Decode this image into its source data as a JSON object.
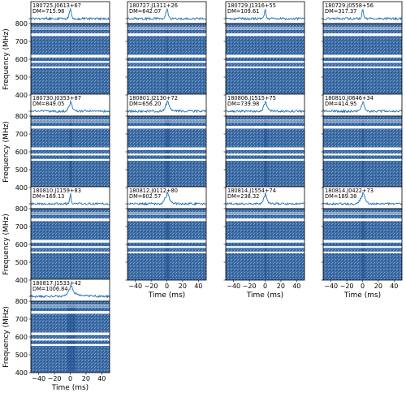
{
  "chart_data": {
    "type": "heatmap",
    "description_kind": "dynamic spectra with pulse profiles",
    "xlabel": "Time (ms)",
    "ylabel": "Frequency (MHz)",
    "xlim": [
      -50,
      50
    ],
    "ylim": [
      400,
      800
    ],
    "xticks": [
      -40,
      -20,
      0,
      20,
      40
    ],
    "xtick_labels": [
      "−40",
      "−20",
      "0",
      "20",
      "40"
    ],
    "yticks": [
      400,
      500,
      600,
      700,
      800
    ],
    "ytick_labels": [
      "400",
      "500",
      "600",
      "700",
      "800"
    ],
    "colors": {
      "spectrum": "#3c6ba3",
      "spectrum_light": "#7fa6cf",
      "spectrum_dark": "#1f4f8e",
      "profile_line": "#1f6fb4",
      "masked": "#ffffff"
    },
    "panels": [
      {
        "name": "180725.J0613+67",
        "dm_label": "DM=715.98",
        "row": 0,
        "col": 0,
        "peak_ms": 0,
        "width_ms": 1.5,
        "scatter_ms": 1,
        "masked_mhz": [
          [
            730,
            745
          ],
          [
            610,
            625
          ],
          [
            580,
            590
          ],
          [
            550,
            560
          ]
        ],
        "show_ylabels": true,
        "show_xlabels": false
      },
      {
        "name": "180727.J1311+26",
        "dm_label": "DM=642.07",
        "row": 0,
        "col": 1,
        "peak_ms": 0,
        "width_ms": 1.5,
        "scatter_ms": 1,
        "masked_mhz": [
          [
            730,
            745
          ],
          [
            610,
            625
          ],
          [
            580,
            590
          ],
          [
            550,
            560
          ]
        ],
        "show_ylabels": false,
        "show_xlabels": false
      },
      {
        "name": "180729.J1316+55",
        "dm_label": "DM=109.61",
        "row": 0,
        "col": 2,
        "peak_ms": 0,
        "width_ms": 1,
        "scatter_ms": 1,
        "masked_mhz": [
          [
            730,
            745
          ],
          [
            610,
            625
          ],
          [
            580,
            590
          ],
          [
            550,
            560
          ]
        ],
        "show_ylabels": false,
        "show_xlabels": false
      },
      {
        "name": "180729.J0558+56",
        "dm_label": "DM=317.37",
        "row": 0,
        "col": 3,
        "peak_ms": 0,
        "width_ms": 1,
        "scatter_ms": 1,
        "masked_mhz": [
          [
            730,
            745
          ],
          [
            610,
            625
          ],
          [
            580,
            590
          ],
          [
            550,
            560
          ]
        ],
        "show_ylabels": false,
        "show_xlabels": false
      },
      {
        "name": "180730.J0353+87",
        "dm_label": "DM=849.05",
        "row": 1,
        "col": 0,
        "peak_ms": 0,
        "width_ms": 2,
        "scatter_ms": 3,
        "masked_mhz": [
          [
            730,
            745
          ],
          [
            610,
            625
          ],
          [
            580,
            590
          ],
          [
            550,
            560
          ]
        ],
        "show_ylabels": true,
        "show_xlabels": false
      },
      {
        "name": "180801.J2130+72",
        "dm_label": "DM=656.20",
        "row": 1,
        "col": 1,
        "peak_ms": 0,
        "width_ms": 2,
        "scatter_ms": 6,
        "masked_mhz": [
          [
            730,
            745
          ],
          [
            610,
            625
          ],
          [
            580,
            590
          ],
          [
            550,
            560
          ]
        ],
        "show_ylabels": false,
        "show_xlabels": false
      },
      {
        "name": "180806.J1515+75",
        "dm_label": "DM=739.98",
        "row": 1,
        "col": 2,
        "peak_ms": 0,
        "width_ms": 2,
        "scatter_ms": 4,
        "masked_mhz": [
          [
            730,
            745
          ],
          [
            610,
            625
          ],
          [
            580,
            590
          ],
          [
            550,
            560
          ]
        ],
        "show_ylabels": false,
        "show_xlabels": false
      },
      {
        "name": "180810.J0646+34",
        "dm_label": "DM=414.95",
        "row": 1,
        "col": 3,
        "peak_ms": 0,
        "width_ms": 2,
        "scatter_ms": 2,
        "masked_mhz": [
          [
            730,
            745
          ],
          [
            610,
            625
          ],
          [
            580,
            590
          ],
          [
            550,
            560
          ]
        ],
        "show_ylabels": false,
        "show_xlabels": false
      },
      {
        "name": "180810.J1159+83",
        "dm_label": "DM=169.13",
        "row": 2,
        "col": 0,
        "peak_ms": 0,
        "width_ms": 1,
        "scatter_ms": 1,
        "masked_mhz": [
          [
            730,
            745
          ],
          [
            610,
            625
          ],
          [
            580,
            590
          ],
          [
            550,
            560
          ]
        ],
        "show_ylabels": true,
        "show_xlabels": false
      },
      {
        "name": "180812.J0112+80",
        "dm_label": "DM=802.57",
        "row": 2,
        "col": 1,
        "peak_ms": 0,
        "width_ms": 3,
        "scatter_ms": 4,
        "masked_mhz": [
          [
            730,
            745
          ],
          [
            610,
            625
          ],
          [
            580,
            590
          ],
          [
            550,
            560
          ]
        ],
        "show_ylabels": false,
        "show_xlabels": true
      },
      {
        "name": "180814.J1554+74",
        "dm_label": "DM=238.32",
        "row": 2,
        "col": 2,
        "peak_ms": 0,
        "width_ms": 2,
        "scatter_ms": 2,
        "masked_mhz": [
          [
            730,
            745
          ],
          [
            610,
            625
          ],
          [
            580,
            590
          ],
          [
            550,
            560
          ]
        ],
        "show_ylabels": false,
        "show_xlabels": true
      },
      {
        "name": "180814.J0422+73",
        "dm_label": "DM=189.38",
        "row": 2,
        "col": 3,
        "peak_ms": 0,
        "width_ms": 3,
        "scatter_ms": 3,
        "masked_mhz": [
          [
            730,
            745
          ],
          [
            610,
            625
          ],
          [
            580,
            590
          ],
          [
            550,
            560
          ]
        ],
        "show_ylabels": false,
        "show_xlabels": true
      },
      {
        "name": "180817.J1533+42",
        "dm_label": "DM=1006.84",
        "row": 3,
        "col": 0,
        "peak_ms": 0,
        "width_ms": 3,
        "scatter_ms": 12,
        "masked_mhz": [
          [
            730,
            745
          ],
          [
            610,
            625
          ],
          [
            580,
            590
          ],
          [
            550,
            560
          ]
        ],
        "show_ylabels": true,
        "show_xlabels": true
      }
    ]
  }
}
